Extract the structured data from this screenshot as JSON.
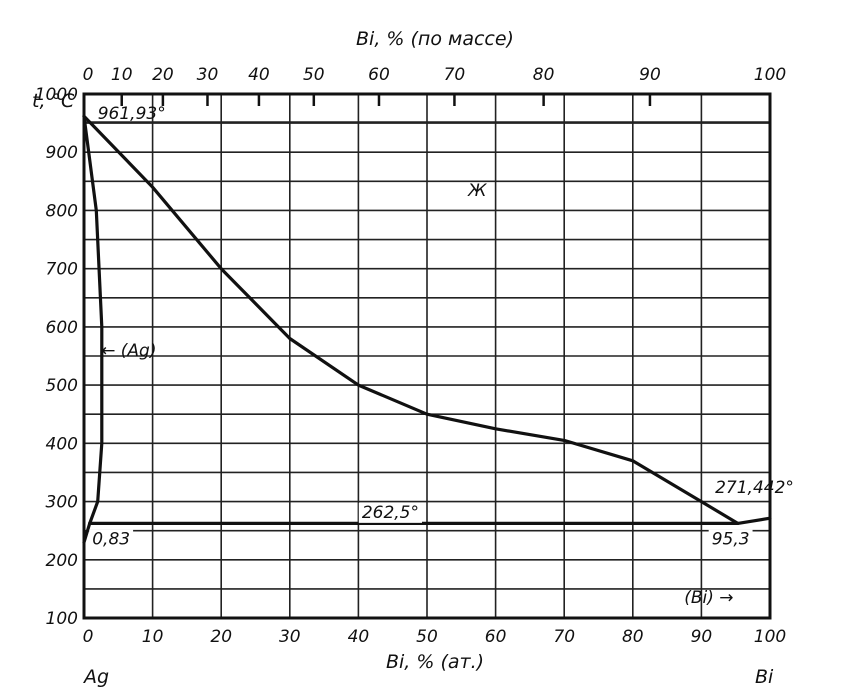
{
  "chart_data": {
    "type": "line",
    "title": "",
    "xlabel_bottom": "Bi, % (ат.)",
    "xlabel_top": "Bi, % (по массе)",
    "ylabel": "t, °C",
    "xlim": [
      0,
      100
    ],
    "ylim": [
      100,
      1000
    ],
    "grid": true,
    "x_ticks_bottom": [
      "0",
      "10",
      "20",
      "30",
      "40",
      "50",
      "60",
      "70",
      "80",
      "90",
      "100"
    ],
    "top_ticks": [
      {
        "label": "0",
        "pos": 0
      },
      {
        "label": "10",
        "pos": 5.5
      },
      {
        "label": "20",
        "pos": 11.5
      },
      {
        "label": "30",
        "pos": 18
      },
      {
        "label": "40",
        "pos": 25.5
      },
      {
        "label": "50",
        "pos": 33.5
      },
      {
        "label": "60",
        "pos": 43
      },
      {
        "label": "70",
        "pos": 54
      },
      {
        "label": "80",
        "pos": 67
      },
      {
        "label": "90",
        "pos": 82.5
      },
      {
        "label": "100",
        "pos": 100
      }
    ],
    "y_ticks": [
      "100",
      "200",
      "300",
      "400",
      "500",
      "600",
      "700",
      "800",
      "900",
      "1000"
    ],
    "series": [
      {
        "values": [
          [
            0,
            961.93
          ],
          [
            10,
            840
          ],
          [
            20,
            700
          ],
          [
            30,
            580
          ],
          [
            40,
            500
          ],
          [
            50,
            450
          ],
          [
            60,
            425
          ],
          [
            70,
            405
          ],
          [
            80,
            370
          ],
          [
            90,
            300
          ],
          [
            95.3,
            262.5
          ],
          [
            100,
            271.442
          ]
        ]
      },
      {
        "values": [
          [
            0,
            961.93
          ],
          [
            1.8,
            800
          ],
          [
            2.6,
            600
          ],
          [
            2.6,
            400
          ],
          [
            2.0,
            300
          ],
          [
            0.83,
            262.5
          ]
        ]
      },
      {
        "values": [
          [
            0.83,
            262.5
          ],
          [
            0,
            230
          ]
        ]
      },
      {
        "values": [
          [
            0.83,
            262.5
          ],
          [
            95.3,
            262.5
          ]
        ]
      }
    ],
    "annotations": [
      {
        "text": "961,93°",
        "x": 2,
        "y": 957
      },
      {
        "text": "Ж",
        "x": 56,
        "y": 825
      },
      {
        "text": "← (Ag)",
        "x": 2.5,
        "y": 550
      },
      {
        "text": "262,5°",
        "x": 40.5,
        "y": 272
      },
      {
        "text": "0,83",
        "x": 1.2,
        "y": 226
      },
      {
        "text": "95,3",
        "x": 91.5,
        "y": 226
      },
      {
        "text": "271,442°",
        "x": 92,
        "y": 315
      },
      {
        "text": "(Bi) →",
        "x": 87.5,
        "y": 126
      }
    ],
    "corner_labels": {
      "left": "Ag",
      "right": "Bi"
    }
  }
}
